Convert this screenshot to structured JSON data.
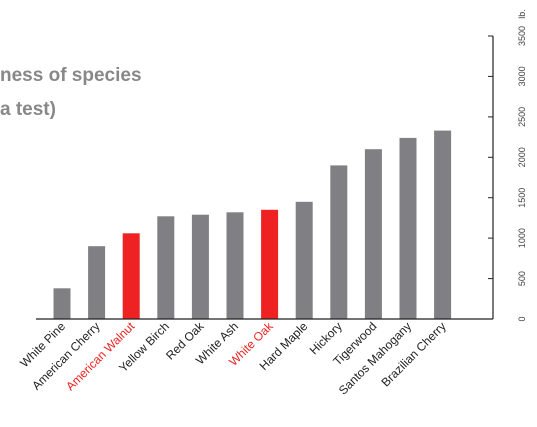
{
  "chart_data": {
    "type": "bar",
    "title_lines": [
      "ness of species",
      "a test)"
    ],
    "unit": "lb.",
    "categories": [
      "White Pine",
      "American Cherry",
      "American Walnut",
      "Yellow Birch",
      "Red Oak",
      "White Ash",
      "White Oak",
      "Hard Maple",
      "Hickory",
      "Tigerwood",
      "Santos Mahogany",
      "Brazilian Cherry"
    ],
    "values": [
      380,
      900,
      1060,
      1270,
      1290,
      1320,
      1350,
      1450,
      1900,
      2100,
      2240,
      2330
    ],
    "highlighted": [
      "American Walnut",
      "White Oak"
    ],
    "y_ticks": [
      0,
      500,
      1000,
      1500,
      2000,
      2500,
      3000,
      3500
    ],
    "ylim": [
      0,
      3500
    ],
    "grid": false,
    "colors": {
      "bar": "#808084",
      "highlight": "#ee2222",
      "label": "#222222",
      "axis": "#222222"
    }
  }
}
